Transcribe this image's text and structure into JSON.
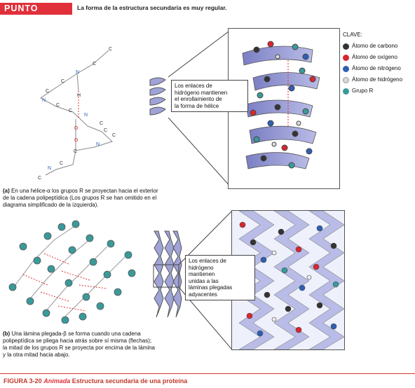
{
  "header": {
    "badge": "PUNTO CLAVE",
    "text": "La forma de la estructura secundaria es muy regular."
  },
  "key": {
    "title": "CLAVE:",
    "items": [
      {
        "label": "Átomo de carbono",
        "color": "#333333"
      },
      {
        "label": "Átomo de oxígeno",
        "color": "#d9262e"
      },
      {
        "label": "Átomo de nitrógeno",
        "color": "#2f5fb3"
      },
      {
        "label": "Átomo de hidrógeno",
        "color": "#d9d9d9"
      },
      {
        "label": "Grupo R",
        "color": "#3a9a9a"
      }
    ]
  },
  "helix": {
    "callout": [
      "Los enlaces de",
      "hidrógeno mantienen",
      "el enrollamiento de",
      "la forma de hélice"
    ],
    "atom_labels": [
      "C",
      "C",
      "N",
      "C",
      "C",
      "N",
      "H",
      "C",
      "C",
      "N",
      "C",
      "O",
      "C",
      "C",
      "N",
      "C",
      "N",
      "C",
      "O",
      "C"
    ],
    "caption_a_prefix": "(a)",
    "caption_lines": [
      "En una hélice-α los grupos R se proyectan hacia el exterior",
      "de la cadena polipeptídica (Los grupos R se han omitido en el",
      "diagrama simplificado de la izquierda)."
    ]
  },
  "sheet": {
    "callout": [
      "Los enlaces de",
      "hidrógeno",
      "mantienen",
      "unidas a las",
      "láminas plegadas",
      "adyacentes"
    ],
    "caption_b_prefix": "(b)",
    "caption_lines": [
      "Una lámina plegada-β se forma cuando una cadena",
      "polipeptídica se pliega hacia atrás sobre sí misma (flechas);",
      "la mitad de los grupos R se proyecta por encima de la lámina",
      "y la otra mitad hacia abajo."
    ]
  },
  "figure": {
    "number": "FIGURA 3-20",
    "anim": "Animada",
    "title": "Estructura secundaria de una proteína"
  }
}
